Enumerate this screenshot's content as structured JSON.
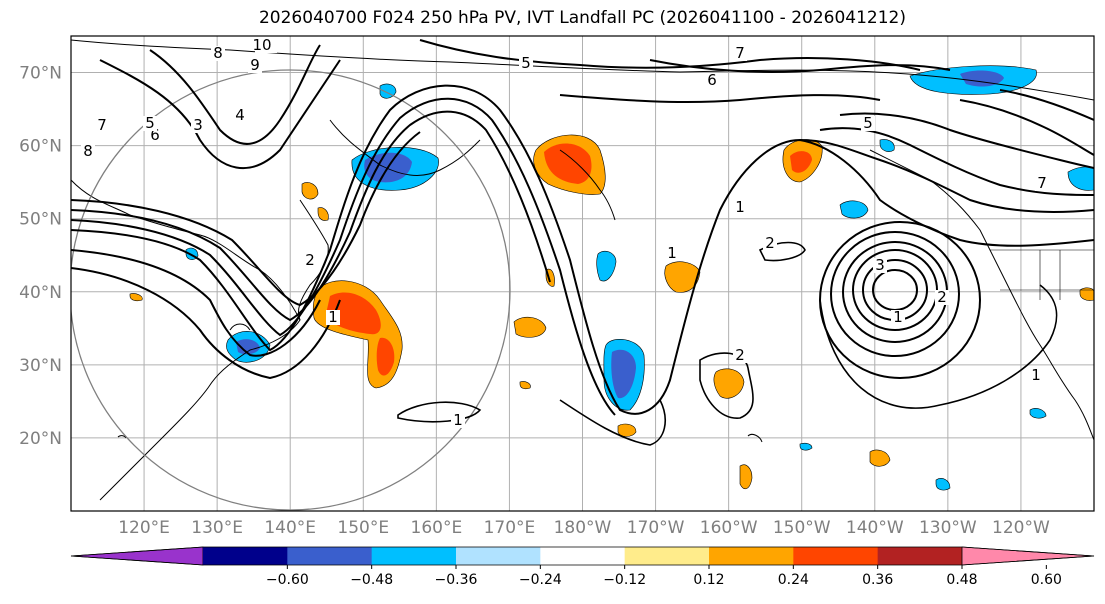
{
  "title": "2026040700 F024 250 hPa PV, IVT Landfall PC (2026041100 - 2026041212)",
  "map": {
    "lat_labels": [
      "70°N",
      "60°N",
      "50°N",
      "40°N",
      "30°N",
      "20°N"
    ],
    "lon_labels": [
      "120°E",
      "130°E",
      "140°E",
      "150°E",
      "160°E",
      "170°E",
      "180°W",
      "170°W",
      "160°W",
      "150°W",
      "140°W",
      "130°W",
      "120°W"
    ],
    "contour_labels": [
      "10",
      "9",
      "8",
      "7",
      "6",
      "5",
      "4",
      "3",
      "2",
      "1",
      "5",
      "6",
      "7",
      "8",
      "1",
      "2",
      "3",
      "1",
      "1",
      "1",
      "2",
      "5",
      "7",
      "1",
      "2"
    ],
    "extent": {
      "lon_min": 110,
      "lon_max": 250,
      "lat_min": 10,
      "lat_max": 75
    }
  },
  "colorbar": {
    "ticks": [
      "−0.60",
      "−0.48",
      "−0.36",
      "−0.24",
      "−0.12",
      "0.12",
      "0.24",
      "0.36",
      "0.48",
      "0.60"
    ],
    "colors": [
      "#9933cc",
      "#00008b",
      "#3a5fcd",
      "#00bfff",
      "#b0e2ff",
      "#ffffff",
      "#ffec8b",
      "#ffa500",
      "#ff4500",
      "#b22222",
      "#ff88aa"
    ]
  }
}
